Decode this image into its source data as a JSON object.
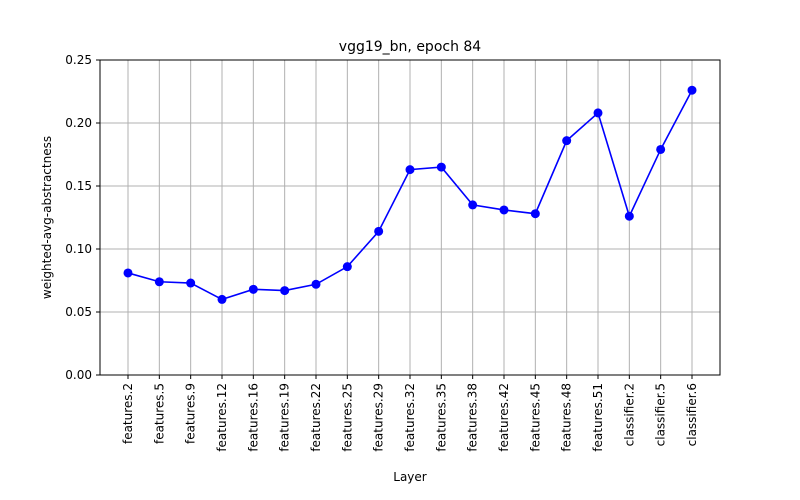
{
  "chart_data": {
    "type": "line",
    "title": "vgg19_bn, epoch 84",
    "xlabel": "Layer",
    "ylabel": "weighted-avg-abstractness",
    "categories": [
      "features.2",
      "features.5",
      "features.9",
      "features.12",
      "features.16",
      "features.19",
      "features.22",
      "features.25",
      "features.29",
      "features.32",
      "features.35",
      "features.38",
      "features.42",
      "features.45",
      "features.48",
      "features.51",
      "classifier.2",
      "classifier.5",
      "classifier.6"
    ],
    "series": [
      {
        "values": [
          0.081,
          0.074,
          0.073,
          0.06,
          0.068,
          0.067,
          0.072,
          0.086,
          0.114,
          0.163,
          0.165,
          0.135,
          0.131,
          0.128,
          0.186,
          0.208,
          0.126,
          0.179,
          0.226
        ],
        "color": "#0000ff",
        "marker": "circle"
      }
    ],
    "ylim": [
      0,
      0.25
    ],
    "yticks": [
      "0.00",
      "0.05",
      "0.10",
      "0.15",
      "0.20",
      "0.25"
    ],
    "grid": true,
    "legend": "none"
  }
}
